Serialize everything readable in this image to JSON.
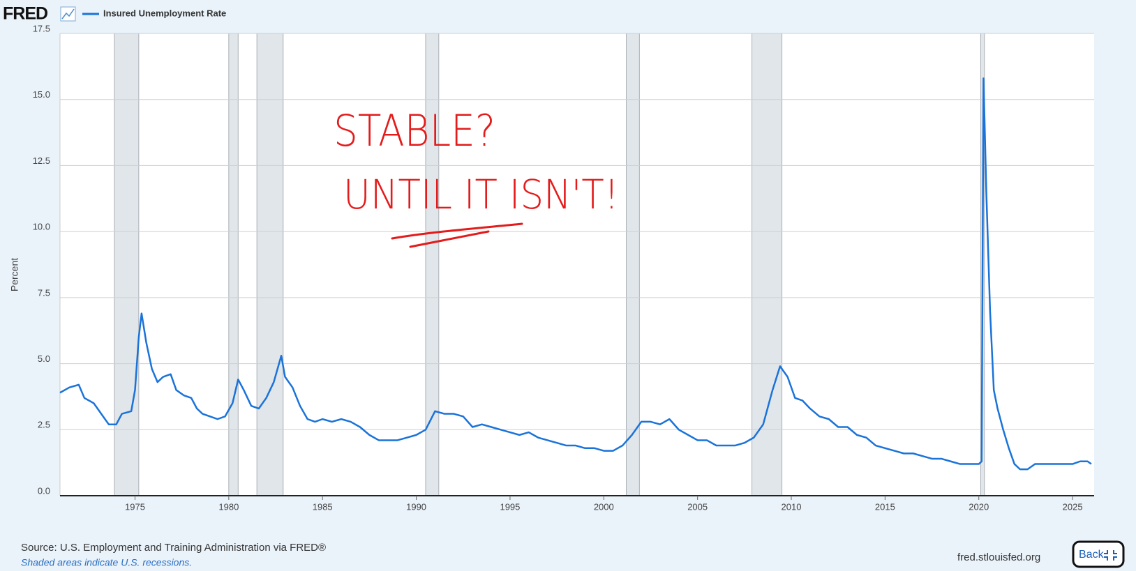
{
  "page": {
    "logo": "FRED",
    "source": "Source: U.S. Employment and Training Administration via FRED®",
    "note": "Shaded areas indicate U.S. recessions.",
    "site": "fred.stlouisfed.org",
    "button": "Back"
  },
  "chart_data": {
    "type": "line",
    "y_label": "Percent",
    "annotations": [
      "STABLE?",
      "UNTIL IT ISN'T!"
    ],
    "xlim": [
      1971,
      2026.15
    ],
    "xticks": [
      1975,
      1980,
      1985,
      1990,
      1995,
      2000,
      2005,
      2010,
      2015,
      2020,
      2025
    ],
    "ylim": [
      0,
      17.5
    ],
    "yticks": [
      {
        "value": 0,
        "label": "0.0"
      },
      2.5,
      {
        "value": 5,
        "label": "5.0"
      },
      7.5,
      {
        "value": 10,
        "label": "10.0"
      },
      12.5,
      {
        "value": 15,
        "label": "15.0"
      },
      17.5
    ],
    "grid": true,
    "recessions": [
      [
        1973.9,
        1975.2
      ],
      [
        1980.0,
        1980.5
      ],
      [
        1981.5,
        1982.9
      ],
      [
        1990.5,
        1991.2
      ],
      [
        2001.2,
        2001.9
      ],
      [
        2007.9,
        2009.5
      ],
      [
        2020.1,
        2020.3
      ]
    ],
    "x": [
      1971.0,
      1971.5,
      1972.0,
      1972.3,
      1972.8,
      1973.3,
      1973.6,
      1974.0,
      1974.3,
      1974.8,
      1975.0,
      1975.2,
      1975.35,
      1975.6,
      1975.9,
      1976.2,
      1976.5,
      1976.9,
      1977.2,
      1977.6,
      1978.0,
      1978.3,
      1978.6,
      1979.0,
      1979.4,
      1979.8,
      1980.2,
      1980.5,
      1980.8,
      1981.2,
      1981.6,
      1982.0,
      1982.4,
      1982.8,
      1983.0,
      1983.4,
      1983.8,
      1984.2,
      1984.6,
      1985.0,
      1985.5,
      1986.0,
      1986.5,
      1987.0,
      1987.5,
      1988.0,
      1988.5,
      1989.0,
      1989.5,
      1990.0,
      1990.5,
      1991.0,
      1991.5,
      1992.0,
      1992.5,
      1993.0,
      1993.5,
      1994.0,
      1994.5,
      1995.0,
      1995.5,
      1996.0,
      1996.5,
      1997.0,
      1997.5,
      1998.0,
      1998.5,
      1999.0,
      1999.5,
      2000.0,
      2000.5,
      2001.0,
      2001.5,
      2002.0,
      2002.5,
      2003.0,
      2003.5,
      2004.0,
      2004.5,
      2005.0,
      2005.5,
      2006.0,
      2006.5,
      2007.0,
      2007.5,
      2008.0,
      2008.5,
      2009.0,
      2009.4,
      2009.8,
      2010.2,
      2010.6,
      2011.0,
      2011.5,
      2012.0,
      2012.5,
      2013.0,
      2013.5,
      2014.0,
      2014.5,
      2015.0,
      2015.5,
      2016.0,
      2016.5,
      2017.0,
      2017.5,
      2018.0,
      2018.5,
      2019.0,
      2019.5,
      2020.0,
      2020.15,
      2020.25,
      2020.4,
      2020.6,
      2020.8,
      2021.0,
      2021.3,
      2021.6,
      2021.9,
      2022.2,
      2022.6,
      2023.0,
      2023.5,
      2024.0,
      2024.5,
      2025.0,
      2025.4,
      2025.8,
      2026.0
    ],
    "series": [
      {
        "name": "Insured Unemployment Rate",
        "color": "#1a73d9",
        "values": [
          3.9,
          4.1,
          4.2,
          3.7,
          3.5,
          3.0,
          2.7,
          2.7,
          3.1,
          3.2,
          4.0,
          6.0,
          6.9,
          5.8,
          4.8,
          4.3,
          4.5,
          4.6,
          4.0,
          3.8,
          3.7,
          3.3,
          3.1,
          3.0,
          2.9,
          3.0,
          3.5,
          4.4,
          4.0,
          3.4,
          3.3,
          3.7,
          4.3,
          5.3,
          4.5,
          4.1,
          3.4,
          2.9,
          2.8,
          2.9,
          2.8,
          2.9,
          2.8,
          2.6,
          2.3,
          2.1,
          2.1,
          2.1,
          2.2,
          2.3,
          2.5,
          3.2,
          3.1,
          3.1,
          3.0,
          2.6,
          2.7,
          2.6,
          2.5,
          2.4,
          2.3,
          2.4,
          2.2,
          2.1,
          2.0,
          1.9,
          1.9,
          1.8,
          1.8,
          1.7,
          1.7,
          1.9,
          2.3,
          2.8,
          2.8,
          2.7,
          2.9,
          2.5,
          2.3,
          2.1,
          2.1,
          1.9,
          1.9,
          1.9,
          2.0,
          2.2,
          2.7,
          4.0,
          4.9,
          4.5,
          3.7,
          3.6,
          3.3,
          3.0,
          2.9,
          2.6,
          2.6,
          2.3,
          2.2,
          1.9,
          1.8,
          1.7,
          1.6,
          1.6,
          1.5,
          1.4,
          1.4,
          1.3,
          1.2,
          1.2,
          1.2,
          1.3,
          15.8,
          11.5,
          7.0,
          4.0,
          3.3,
          2.5,
          1.8,
          1.2,
          1.0,
          1.0,
          1.2,
          1.2,
          1.2,
          1.2,
          1.2,
          1.3,
          1.3,
          1.2
        ]
      }
    ]
  }
}
